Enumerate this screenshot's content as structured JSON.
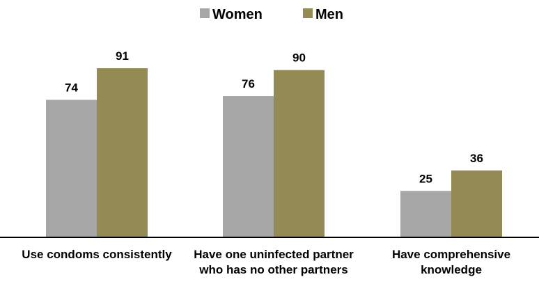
{
  "chart_data": {
    "type": "bar",
    "categories": [
      "Use condoms consistently",
      "Have one uninfected partner who has no other partners",
      "Have comprehensive knowledge"
    ],
    "series": [
      {
        "name": "Women",
        "color": "#a6a6a6",
        "values": [
          74,
          76,
          25
        ]
      },
      {
        "name": "Men",
        "color": "#948a54",
        "values": [
          91,
          90,
          36
        ]
      }
    ],
    "legend": "top"
  }
}
